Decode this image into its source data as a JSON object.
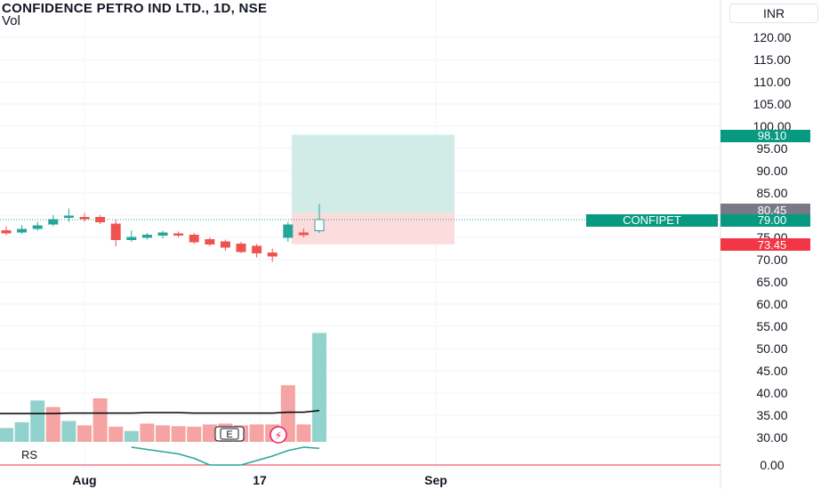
{
  "header": {
    "title": "CONFIDENCE PETRO IND LTD., 1D, NSE",
    "indicator": "Vol",
    "currency": "INR"
  },
  "rs_panel": {
    "label": "RS",
    "zero_label": "0.00"
  },
  "price_labels": {
    "target": "98.10",
    "entry": "80.45",
    "current": "79.00",
    "stop": "73.45",
    "symbol": "CONFIPET"
  },
  "markers": {
    "earnings": "E",
    "dividend": "⚡"
  },
  "colors": {
    "up": "#26a69a",
    "down": "#ef5350",
    "vol_up": "#92d2cc",
    "vol_down": "#f5a3a3",
    "target_zone": "#d1ece6",
    "stop_zone": "#fcdcdc",
    "entry_tag": "#787b86",
    "rs_line": "#26a69a",
    "zero_line": "#f23645"
  },
  "chart_data": {
    "type": "candlestick",
    "y_axis": {
      "ticks": [
        "120.00",
        "115.00",
        "110.00",
        "105.00",
        "100.00",
        "95.00",
        "90.00",
        "85.00",
        "80.00",
        "75.00",
        "70.00",
        "65.00",
        "60.00",
        "55.00",
        "50.00",
        "45.00",
        "40.00",
        "35.00",
        "30.00"
      ],
      "range": [
        28,
        125
      ]
    },
    "x_axis": {
      "ticks": [
        "Aug",
        "17",
        "Sep"
      ]
    },
    "candles": [
      {
        "o": 76.5,
        "h": 77.5,
        "l": 75.5,
        "c": 76.0
      },
      {
        "o": 76.2,
        "h": 77.8,
        "l": 75.8,
        "c": 76.8
      },
      {
        "o": 77.0,
        "h": 78.5,
        "l": 76.5,
        "c": 77.6
      },
      {
        "o": 78.0,
        "h": 80.0,
        "l": 77.5,
        "c": 79.0
      },
      {
        "o": 79.5,
        "h": 81.5,
        "l": 78.5,
        "c": 79.8
      },
      {
        "o": 79.5,
        "h": 80.5,
        "l": 78.5,
        "c": 79.4
      },
      {
        "o": 79.5,
        "h": 80.0,
        "l": 78.0,
        "c": 78.5
      },
      {
        "o": 78.0,
        "h": 79.0,
        "l": 73.0,
        "c": 74.5
      },
      {
        "o": 74.5,
        "h": 76.5,
        "l": 74.0,
        "c": 75.0
      },
      {
        "o": 75.0,
        "h": 76.0,
        "l": 74.5,
        "c": 75.5
      },
      {
        "o": 75.5,
        "h": 76.5,
        "l": 74.8,
        "c": 76.0
      },
      {
        "o": 75.8,
        "h": 76.3,
        "l": 75.0,
        "c": 75.5
      },
      {
        "o": 75.5,
        "h": 76.0,
        "l": 73.5,
        "c": 74.0
      },
      {
        "o": 74.5,
        "h": 75.0,
        "l": 73.0,
        "c": 73.5
      },
      {
        "o": 74.0,
        "h": 74.5,
        "l": 72.0,
        "c": 72.8
      },
      {
        "o": 73.5,
        "h": 74.0,
        "l": 71.5,
        "c": 71.8
      },
      {
        "o": 73.0,
        "h": 73.5,
        "l": 70.5,
        "c": 71.5
      },
      {
        "o": 71.5,
        "h": 72.5,
        "l": 69.5,
        "c": 70.8
      },
      {
        "o": 75.0,
        "h": 78.5,
        "l": 74.0,
        "c": 77.8
      },
      {
        "o": 76.0,
        "h": 77.0,
        "l": 75.0,
        "c": 75.6
      },
      {
        "o": 76.5,
        "h": 82.5,
        "l": 76.0,
        "c": 79.0
      }
    ],
    "volume_bars": [
      {
        "v": 3.2,
        "dir": "up"
      },
      {
        "v": 4.5,
        "dir": "up"
      },
      {
        "v": 9.5,
        "dir": "up"
      },
      {
        "v": 8.0,
        "dir": "down"
      },
      {
        "v": 4.8,
        "dir": "up"
      },
      {
        "v": 3.8,
        "dir": "down"
      },
      {
        "v": 10.0,
        "dir": "down"
      },
      {
        "v": 3.5,
        "dir": "down"
      },
      {
        "v": 2.5,
        "dir": "up"
      },
      {
        "v": 4.2,
        "dir": "down"
      },
      {
        "v": 3.8,
        "dir": "down"
      },
      {
        "v": 3.6,
        "dir": "down"
      },
      {
        "v": 3.5,
        "dir": "down"
      },
      {
        "v": 4.0,
        "dir": "down"
      },
      {
        "v": 4.2,
        "dir": "down"
      },
      {
        "v": 3.8,
        "dir": "down"
      },
      {
        "v": 4.0,
        "dir": "down"
      },
      {
        "v": 4.0,
        "dir": "down"
      },
      {
        "v": 13.0,
        "dir": "down"
      },
      {
        "v": 4.0,
        "dir": "down"
      },
      {
        "v": 25.0,
        "dir": "up"
      }
    ],
    "volume_ma": [
      6.5,
      6.5,
      6.5,
      6.5,
      6.6,
      6.6,
      6.6,
      6.6,
      6.6,
      6.7,
      6.7,
      6.7,
      6.6,
      6.6,
      6.6,
      6.6,
      6.6,
      6.6,
      6.8,
      6.8,
      7.2
    ],
    "rs_line": [
      null,
      null,
      null,
      null,
      null,
      null,
      null,
      null,
      0.8,
      0.7,
      0.6,
      0.5,
      0.3,
      0.0,
      0.0,
      0.0,
      0.2,
      0.4,
      0.65,
      0.8,
      0.75
    ],
    "position": {
      "entry": 80.45,
      "target": 98.1,
      "stop": 73.45,
      "current": 79.0
    }
  }
}
